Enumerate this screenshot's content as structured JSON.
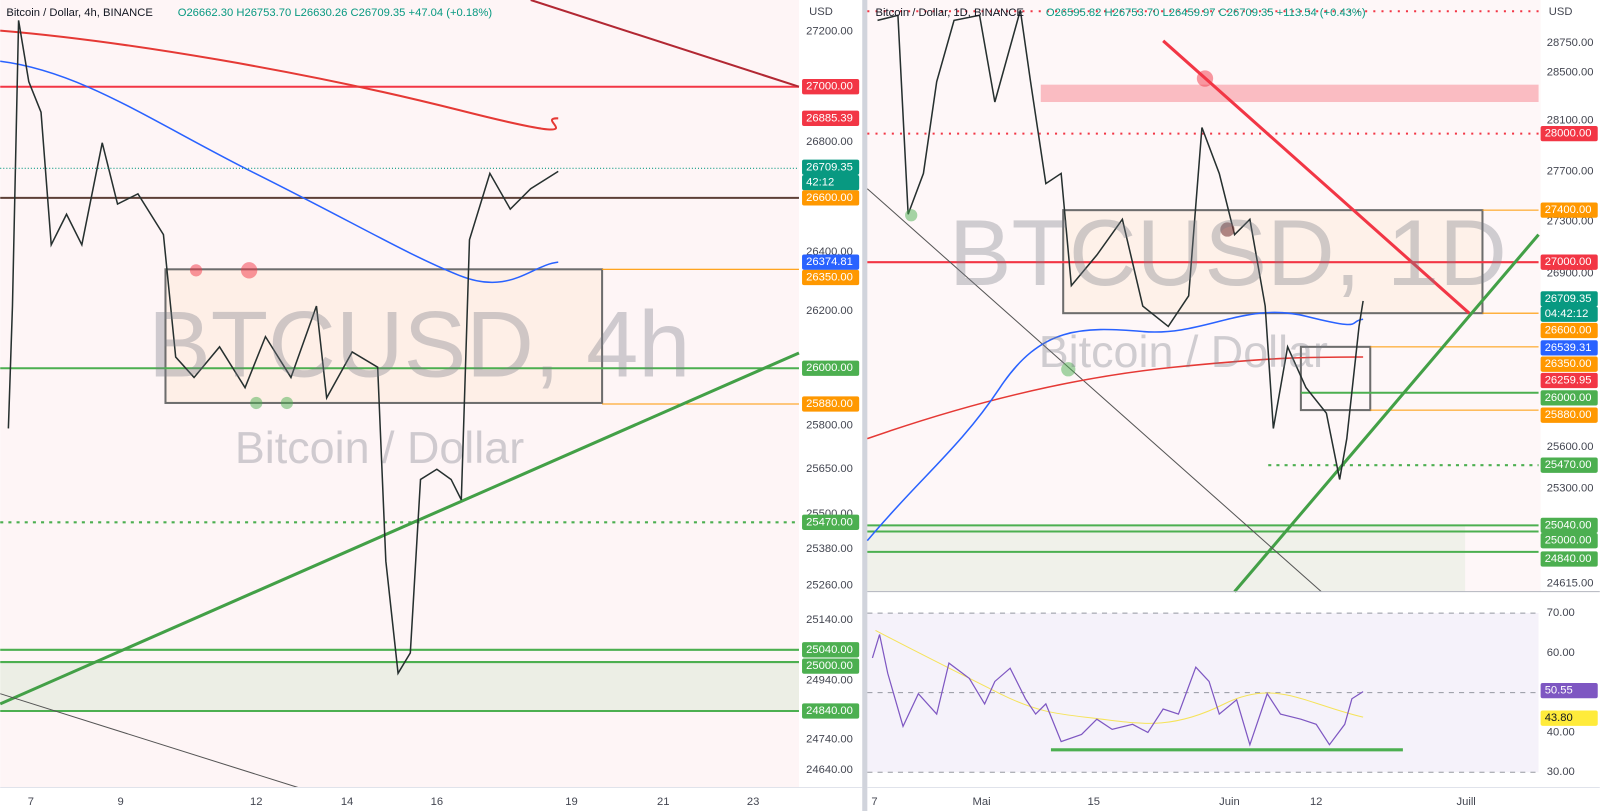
{
  "left": {
    "header": {
      "symbol": "Bitcoin / Dollar, 4h, BINANCE",
      "ohlc": "O26662.30 H26753.70 L26630.26 C26709.35 +47.04 (+0.18%)"
    },
    "currency": "USD",
    "watermark": "BTCUSD, 4h",
    "watermark_sub": "Bitcoin / Dollar",
    "price_axis": [
      "27200.00",
      "26800.00",
      "26400.00",
      "26200.00",
      "25800.00",
      "25650.00",
      "25500.00",
      "25380.00",
      "25260.00",
      "25140.00",
      "24940.00",
      "24740.00",
      "24640.00"
    ],
    "price_tags": [
      {
        "text": "27000.00",
        "color": "#f23645"
      },
      {
        "text": "26885.39",
        "color": "#f23645"
      },
      {
        "text": "26709.35",
        "color": "#089981"
      },
      {
        "text": "42:12",
        "color": "#089981"
      },
      {
        "text": "26600.00",
        "color": "#ff9800"
      },
      {
        "text": "26374.81",
        "color": "#2962ff"
      },
      {
        "text": "26350.00",
        "color": "#ff9800"
      },
      {
        "text": "26000.00",
        "color": "#4caf50"
      },
      {
        "text": "25880.00",
        "color": "#ff9800"
      },
      {
        "text": "25470.00",
        "color": "#4caf50"
      },
      {
        "text": "25040.00",
        "color": "#4caf50"
      },
      {
        "text": "25000.00",
        "color": "#4caf50"
      },
      {
        "text": "24840.00",
        "color": "#4caf50"
      }
    ],
    "time_axis": [
      "7",
      "9",
      "12",
      "14",
      "16",
      "19",
      "21",
      "23"
    ]
  },
  "right": {
    "header": {
      "symbol": "Bitcoin / Dollar, 1D, BINANCE",
      "ohlc": "O26595.82 H26753.70 L26459.97 C26709.35 +113.54 (+0.43%)"
    },
    "currency": "USD",
    "watermark": "BTCUSD, 1D",
    "watermark_sub": "Bitcoin / Dollar",
    "price_axis": [
      "28750.00",
      "28500.00",
      "28100.00",
      "27700.00",
      "27300.00",
      "26900.00",
      "25600.00",
      "25300.00",
      "24615.00"
    ],
    "price_tags": [
      {
        "text": "28000.00",
        "color": "#f23645"
      },
      {
        "text": "27400.00",
        "color": "#ff9800"
      },
      {
        "text": "27000.00",
        "color": "#f23645"
      },
      {
        "text": "26709.35",
        "color": "#089981"
      },
      {
        "text": "04:42:12",
        "color": "#089981"
      },
      {
        "text": "26600.00",
        "color": "#ff9800"
      },
      {
        "text": "26539.31",
        "color": "#2962ff"
      },
      {
        "text": "26350.00",
        "color": "#ff9800"
      },
      {
        "text": "26259.95",
        "color": "#f23645"
      },
      {
        "text": "26000.00",
        "color": "#4caf50"
      },
      {
        "text": "25880.00",
        "color": "#ff9800"
      },
      {
        "text": "25470.00",
        "color": "#4caf50"
      },
      {
        "text": "25040.00",
        "color": "#4caf50"
      },
      {
        "text": "25000.00",
        "color": "#4caf50"
      },
      {
        "text": "24840.00",
        "color": "#4caf50"
      }
    ],
    "rsi_axis": [
      "70.00",
      "60.00",
      "40.00",
      "30.00"
    ],
    "rsi_tags": [
      {
        "text": "50.55",
        "color": "#7e57c2"
      },
      {
        "text": "43.80",
        "color": "#ffeb3b"
      }
    ],
    "time_axis": [
      "7",
      "Mai",
      "15",
      "Juin",
      "12",
      "Juill"
    ]
  }
}
